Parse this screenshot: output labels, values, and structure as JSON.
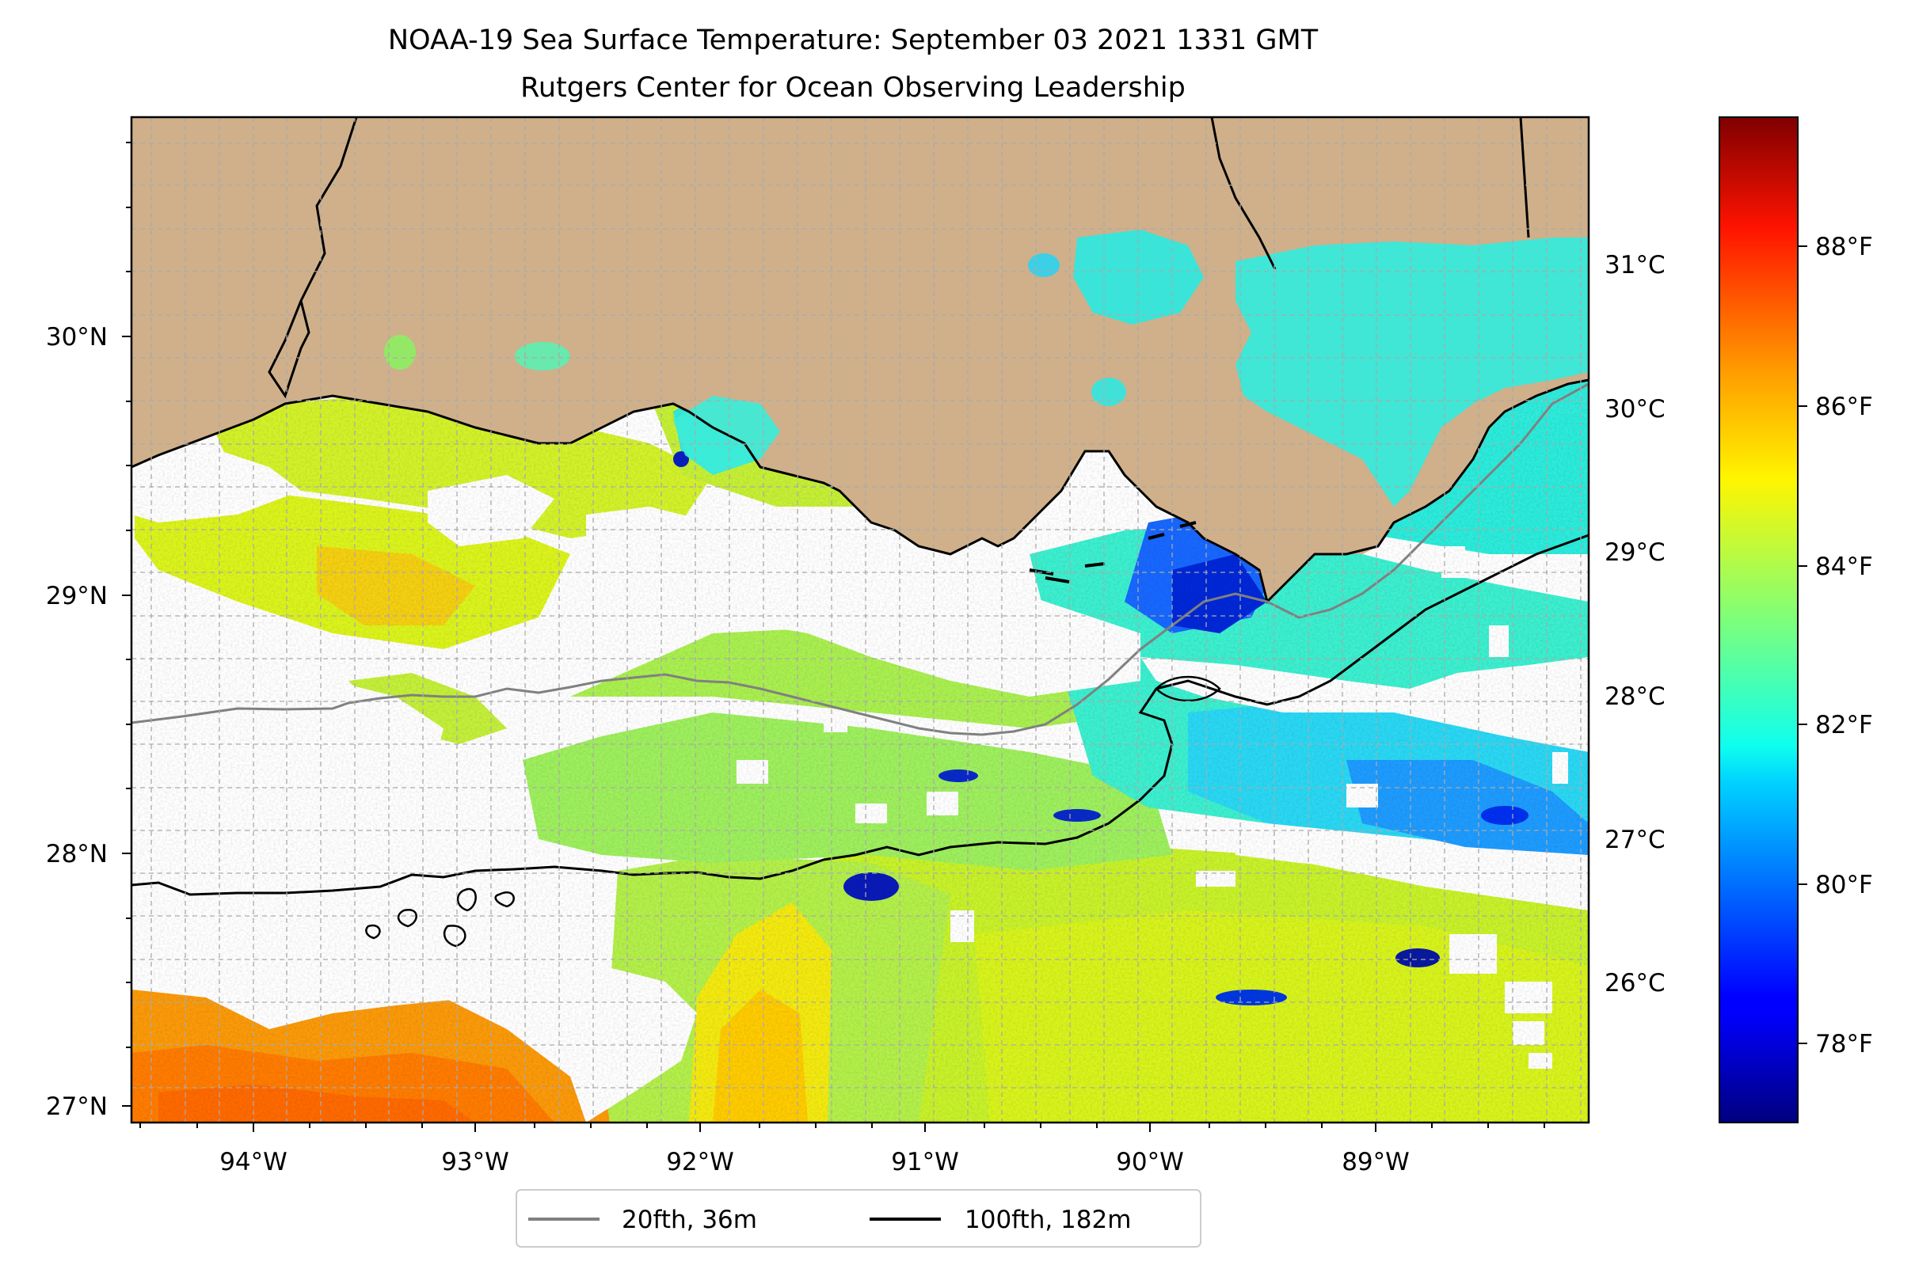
{
  "title_line1": "NOAA-19 Sea Surface Temperature: September 03 2021 1331 GMT",
  "title_line2": "Rutgers Center for Ocean Observing Leadership",
  "map": {
    "lon_range": [
      -94.55,
      -88.15
    ],
    "lat_range": [
      26.94,
      30.84
    ],
    "land_color": "#cfb08a",
    "grid": true,
    "lon_labels": [
      "94°W",
      "93°W",
      "92°W",
      "91°W",
      "90°W",
      "89°W"
    ],
    "lat_labels": [
      "30°N",
      "29°N",
      "28°N",
      "27°N"
    ]
  },
  "celsius_labels": [
    "31°C",
    "30°C",
    "29°C",
    "28°C",
    "27°C",
    "26°C"
  ],
  "colorbar": {
    "colormap": "jet",
    "unit": "°F",
    "range": [
      77.0,
      89.9
    ],
    "labels": [
      "88°F",
      "86°F",
      "84°F",
      "82°F",
      "80°F",
      "78°F"
    ]
  },
  "legend": {
    "placement": "bottom-center",
    "entries": [
      {
        "label": "20fth, 36m",
        "color": "#808080"
      },
      {
        "label": "100fth, 182m",
        "color": "#000000"
      }
    ]
  }
}
